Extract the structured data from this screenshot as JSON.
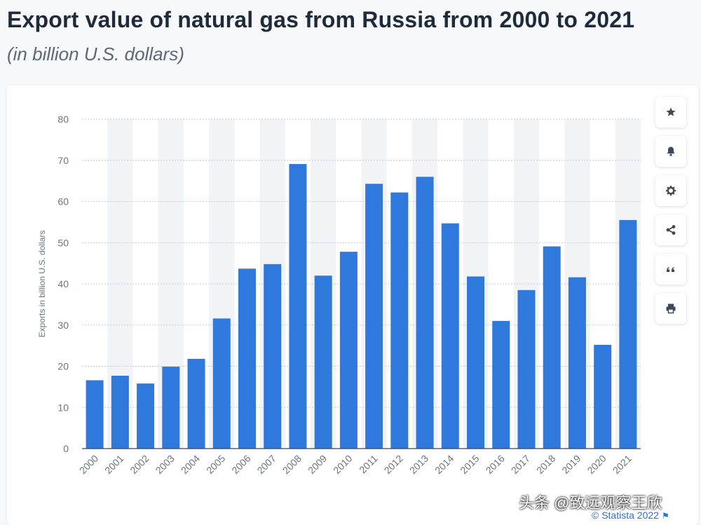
{
  "header": {
    "title": "Export value of natural gas from Russia from 2000 to 2021",
    "subtitle": "(in billion U.S. dollars)"
  },
  "toolbar": {
    "buttons": [
      {
        "name": "favorite",
        "icon": "star-icon"
      },
      {
        "name": "notification",
        "icon": "bell-icon"
      },
      {
        "name": "settings",
        "icon": "gear-icon"
      },
      {
        "name": "share",
        "icon": "share-icon"
      },
      {
        "name": "cite",
        "icon": "quote-icon"
      },
      {
        "name": "print",
        "icon": "printer-icon"
      }
    ]
  },
  "footer": {
    "watermark": "头条 @致远观察王欣",
    "credit": "© Statista 2022"
  },
  "colors": {
    "bar": "#2f78dc",
    "grid": "#c9ced6",
    "band": "#f2f3f5",
    "axis": "#444444"
  },
  "chart_data": {
    "type": "bar",
    "title": "Export value of natural gas from Russia from 2000 to 2021",
    "subtitle": "(in billion U.S. dollars)",
    "xlabel": "",
    "ylabel": "Exports in billion U.S. dollars",
    "ylim": [
      0,
      80
    ],
    "yticks": [
      0,
      10,
      20,
      30,
      40,
      50,
      60,
      70,
      80
    ],
    "grid": true,
    "categories": [
      "2000",
      "2001",
      "2002",
      "2003",
      "2004",
      "2005",
      "2006",
      "2007",
      "2008",
      "2009",
      "2010",
      "2011",
      "2012",
      "2013",
      "2014",
      "2015",
      "2016",
      "2017",
      "2018",
      "2019",
      "2020",
      "2021"
    ],
    "series": [
      {
        "name": "Exports",
        "values": [
          16.6,
          17.7,
          15.8,
          19.9,
          21.8,
          31.6,
          43.7,
          44.8,
          69.1,
          42.0,
          47.8,
          64.3,
          62.2,
          66.0,
          54.7,
          41.8,
          31.0,
          38.5,
          49.1,
          41.6,
          25.2,
          55.5
        ]
      }
    ]
  }
}
